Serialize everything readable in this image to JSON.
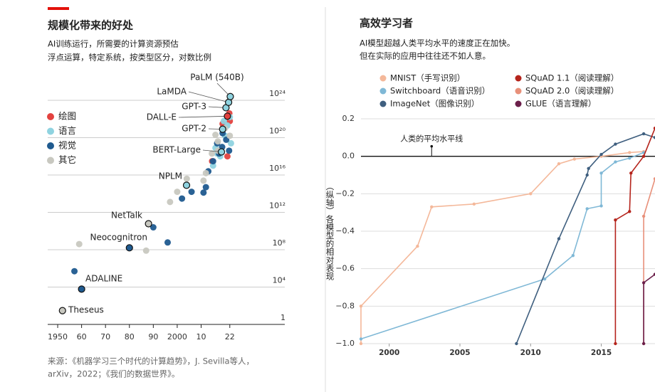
{
  "chart_data": [
    {
      "type": "scatter",
      "title": "规模化带来的好处",
      "subtitle": [
        "AI训练运行，所需要的计算资源预估",
        "浮点运算，特定系统，按类型区分，对数比例"
      ],
      "source": [
        "来源：《机器学习三个时代的计算趋势》，J. Sevilla等人，",
        "arXiv，2022；《我们的数据世界》。"
      ],
      "xlim": [
        1946,
        2045
      ],
      "xticks": [
        {
          "value": 1950,
          "label": "1950"
        },
        {
          "value": 1960,
          "label": "60"
        },
        {
          "value": 1970,
          "label": "70"
        },
        {
          "value": 1980,
          "label": "80"
        },
        {
          "value": 1990,
          "label": "90"
        },
        {
          "value": 2000,
          "label": "2000"
        },
        {
          "value": 2010,
          "label": "10"
        },
        {
          "value": 2022,
          "label": "22"
        }
      ],
      "ylim": [
        1,
        1e+26
      ],
      "ylog": true,
      "yticks": [
        1,
        {
          "value": 10000.0,
          "label": "10⁴"
        },
        {
          "value": 100000000.0,
          "label": "10⁸"
        },
        {
          "value": 1000000000000.0,
          "label": "10¹²"
        },
        {
          "value": 1e+16,
          "label": "10¹⁶"
        },
        {
          "value": 1e+20,
          "label": "10²⁰"
        },
        {
          "value": 1e+24,
          "label": "10²⁴"
        }
      ],
      "grid": true,
      "legend": "left",
      "series": [
        {
          "name": "绘图",
          "color": "#e3423f",
          "x": [
            2014.6,
            2021,
            2021,
            2019,
            2022,
            2021.8
          ],
          "values": [
            3e+17,
            1e+18,
            2e+22,
            3e+21,
            6e+21,
            4e+22
          ],
          "labels": [
            null,
            null,
            "DALL-E",
            null,
            null,
            null
          ]
        },
        {
          "name": "语言",
          "color": "#8fd3e0",
          "x": [
            2003.9,
            2015,
            2016.7,
            2018.5,
            2016,
            2019,
            2020,
            2021,
            2020.4,
            2021.5,
            2022.2,
            2022,
            2019.5,
            2022.5,
            2018
          ],
          "values": [
            800000000000000.0,
            1e+17,
            2e+18,
            3e+18,
            8e+18,
            8e+20,
            1.6e+20,
            2e+21,
            1.6e+23,
            6e+23,
            2.5e+24,
            1.6e+22,
            6e+21,
            2.5e+19,
            1e+18
          ],
          "labels": [
            "NPLM",
            null,
            null,
            "BERT-Large",
            null,
            "GPT-2",
            null,
            null,
            "GPT-3",
            "LaMDA",
            "PaLM (540B)",
            null,
            null,
            null,
            null
          ]
        },
        {
          "name": "视觉",
          "color": "#1f5a8f",
          "x": [
            1957,
            1960,
            1980,
            1990,
            1996,
            2002,
            2006,
            2011,
            2012,
            2013,
            2015,
            2016.7,
            2017.5,
            2018.8,
            2019,
            2020.5,
            2021.7
          ],
          "values": [
            500000.0,
            6000.0,
            160000000.0,
            25000000000.0,
            600000000.0,
            30000000000000.0,
            160000000000000.0,
            130000000000000.0,
            500000000000000.0,
            2.5e+16,
            3e+17,
            2.5e+19,
            2e+18,
            1e+19,
            3e+20,
            6e+19,
            4e+18
          ],
          "labels": [
            null,
            "ADALINE",
            "Neocognitron",
            null,
            null,
            null,
            null,
            null,
            null,
            null,
            null,
            null,
            null,
            null,
            null,
            null,
            null
          ]
        },
        {
          "name": "其它",
          "color": "#c8c8c0",
          "x": [
            1952,
            1959,
            1987,
            1988,
            1997,
            2000,
            2004,
            2011,
            2012,
            2014.5,
            2017,
            2016,
            2020,
            2022,
            2017
          ],
          "values": [
            30,
            400000000.0,
            80000000.0,
            60000000000.0,
            13000000000000.0,
            160000000000000.0,
            4000000000000000.0,
            2500000000000000.0,
            1.6e+16,
            2e+18,
            4e+19,
            2e+20,
            1e+21,
            1.6e+20,
            4e+18
          ],
          "labels": [
            "Theseus",
            null,
            null,
            "NetTalk",
            null,
            null,
            null,
            null,
            null,
            null,
            null,
            null,
            null,
            null,
            null
          ]
        }
      ]
    },
    {
      "type": "line",
      "title": "高效学习者",
      "subtitle": [
        "AI模型超越人类平均水平的速度正在加快。",
        "但在实际的应用中往往还不如人意。"
      ],
      "y_label": "（纵轴）各模型的相对表现",
      "annotation": "人类的平均水平线",
      "annotation_x": 2003,
      "xlim": [
        1998,
        2018.8
      ],
      "xticks": [
        2000,
        2005,
        2010,
        2015
      ],
      "ylim": [
        -1,
        0.2
      ],
      "yticks": [
        0.2,
        {
          "value": 0,
          "label": "0.0"
        },
        {
          "value": -0.2,
          "label": "−0.2"
        },
        {
          "value": -0.4,
          "label": "−0.4"
        },
        {
          "value": -0.6,
          "label": "−0.6"
        },
        {
          "value": -0.8,
          "label": "−0.8"
        },
        {
          "value": -1,
          "label": "−1.0"
        }
      ],
      "grid": true,
      "legend": "top",
      "series": [
        {
          "name": "MNIST（手写识别）",
          "color": "#f4b89a",
          "x": [
            1998,
            1998,
            2002,
            2003,
            2006,
            2010,
            2012,
            2013.1,
            2015,
            2017,
            2018
          ],
          "values": [
            -1.0,
            -0.8,
            -0.48,
            -0.27,
            -0.255,
            -0.2,
            -0.04,
            -0.015,
            0,
            0.02,
            0.025
          ]
        },
        {
          "name": "Switchboard（语音识别）",
          "color": "#7fb8d6",
          "x": [
            1998,
            2011,
            2013,
            2014,
            2015,
            2015,
            2016,
            2017,
            2018
          ],
          "values": [
            -0.975,
            -0.655,
            -0.53,
            -0.28,
            -0.265,
            -0.09,
            -0.03,
            -0.01,
            0.02
          ]
        },
        {
          "name": "ImageNet（图像识别）",
          "color": "#3f5f7f",
          "x": [
            2009,
            2012,
            2014,
            2014.1,
            2015,
            2016,
            2018,
            2018.8
          ],
          "values": [
            -1.0,
            -0.44,
            -0.1,
            -0.065,
            0.01,
            0.065,
            0.12,
            0.1
          ]
        },
        {
          "name": "SQuAD 1.1（阅读理解）",
          "color": "#b5241c",
          "x": [
            2016,
            2016,
            2017,
            2017.1,
            2018,
            2018.8
          ],
          "values": [
            -1.0,
            -0.34,
            -0.295,
            -0.09,
            0.0,
            0.15
          ]
        },
        {
          "name": "SQuAD 2.0（阅读理解）",
          "color": "#e8907a",
          "x": [
            2018,
            2018,
            2018.8
          ],
          "values": [
            -1.0,
            -0.32,
            -0.12
          ]
        },
        {
          "name": "GLUE（语言理解）",
          "color": "#6b1f4a",
          "x": [
            2018,
            2018,
            2018.8
          ],
          "values": [
            -1.0,
            -0.675,
            -0.63
          ]
        }
      ]
    }
  ]
}
